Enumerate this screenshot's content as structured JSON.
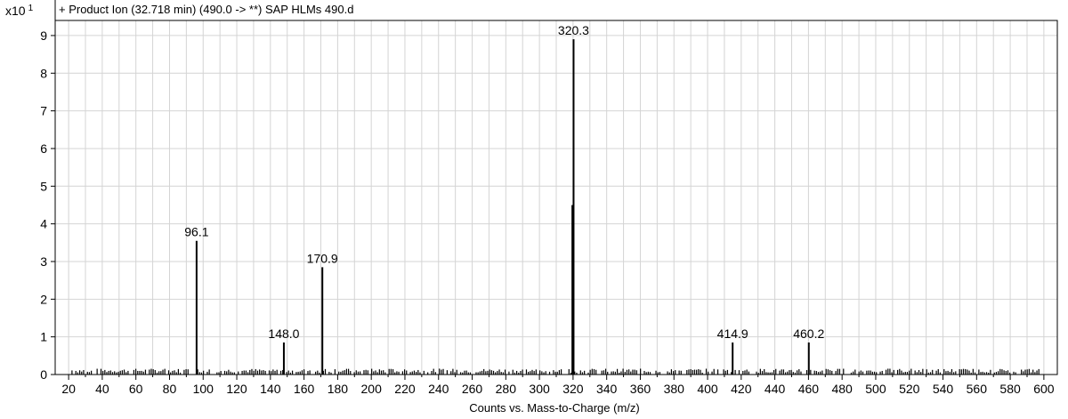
{
  "chart_data": {
    "type": "bar",
    "title": "+ Product Ion (32.718 min) (490.0 -> **) SAP HLMs 490.d",
    "y_scale_label": "x10",
    "y_scale_exponent": "1",
    "xlabel": "Counts vs. Mass-to-Charge (m/z)",
    "ylabel": "",
    "xlim": [
      12,
      608
    ],
    "ylim": [
      0,
      9.4
    ],
    "x_ticks": [
      20,
      40,
      60,
      80,
      100,
      120,
      140,
      160,
      180,
      200,
      220,
      240,
      260,
      280,
      300,
      320,
      340,
      360,
      380,
      400,
      420,
      440,
      460,
      480,
      500,
      520,
      540,
      560,
      580,
      600
    ],
    "y_ticks": [
      0,
      1,
      2,
      3,
      4,
      5,
      6,
      7,
      8,
      9
    ],
    "grid": true,
    "peaks": [
      {
        "x": 96.1,
        "y": 3.55,
        "label": "96.1"
      },
      {
        "x": 148.0,
        "y": 0.85,
        "label": "148.0"
      },
      {
        "x": 170.9,
        "y": 2.85,
        "label": "170.9"
      },
      {
        "x": 320.3,
        "y": 8.9,
        "label": "320.3"
      },
      {
        "x": 319.6,
        "y": 4.5,
        "label": ""
      },
      {
        "x": 414.9,
        "y": 0.85,
        "label": "414.9"
      },
      {
        "x": 460.2,
        "y": 0.85,
        "label": "460.2"
      }
    ],
    "baseline_noise": {
      "x_start": 22,
      "x_end": 598,
      "level": 0.12
    }
  }
}
